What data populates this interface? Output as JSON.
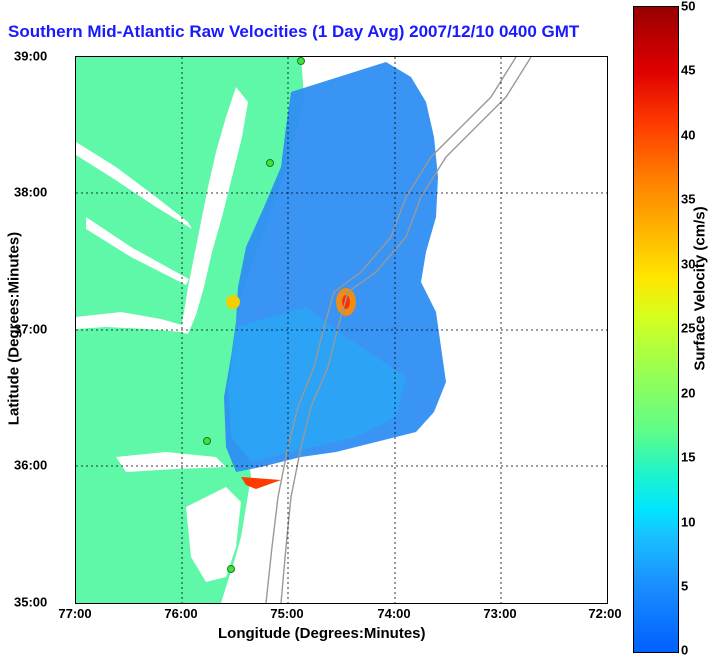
{
  "title": "Southern Mid-Atlantic Raw Velocities (1 Day Avg) 2007/12/10 0400 GMT",
  "x_axis": {
    "label": "Longitude (Degrees:Minutes)",
    "ticks": [
      "77:00",
      "76:00",
      "75:00",
      "74:00",
      "73:00",
      "72:00"
    ]
  },
  "y_axis": {
    "label": "Latitude (Degrees:Minutes)",
    "ticks": [
      "39:00",
      "38:00",
      "37:00",
      "36:00",
      "35:00"
    ]
  },
  "colorbar": {
    "label": "Surface Velocity (cm/s)",
    "ticks": [
      "50",
      "45",
      "40",
      "35",
      "30",
      "25",
      "20",
      "15",
      "10",
      "5",
      "0"
    ],
    "range": [
      0,
      50
    ]
  },
  "colors": {
    "land": "#5ff7a8",
    "title": "#1a1aff",
    "current_field": "#2e8ef2",
    "station_dot": "#3ee43e"
  }
}
